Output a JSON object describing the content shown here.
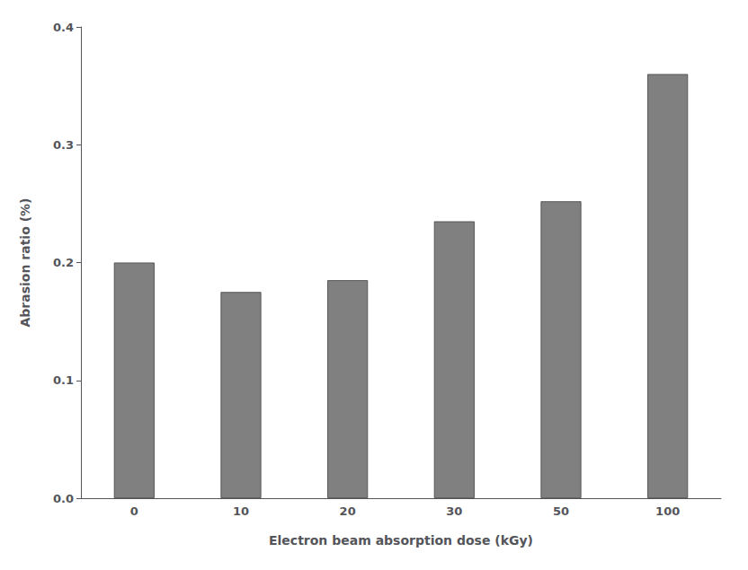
{
  "chart_data": {
    "type": "bar",
    "categories": [
      "0",
      "10",
      "20",
      "30",
      "50",
      "100"
    ],
    "values": [
      0.2,
      0.175,
      0.185,
      0.235,
      0.252,
      0.36
    ],
    "color": "#808080",
    "xlabel": "Electron beam absorption dose (kGy)",
    "ylabel": "Abrasion ratio (%)",
    "ylim": [
      0.0,
      0.4
    ],
    "yticks": [
      {
        "value": 0.0,
        "label": "0.0"
      },
      0.1,
      0.2,
      0.3,
      0.4
    ],
    "grid": false
  }
}
